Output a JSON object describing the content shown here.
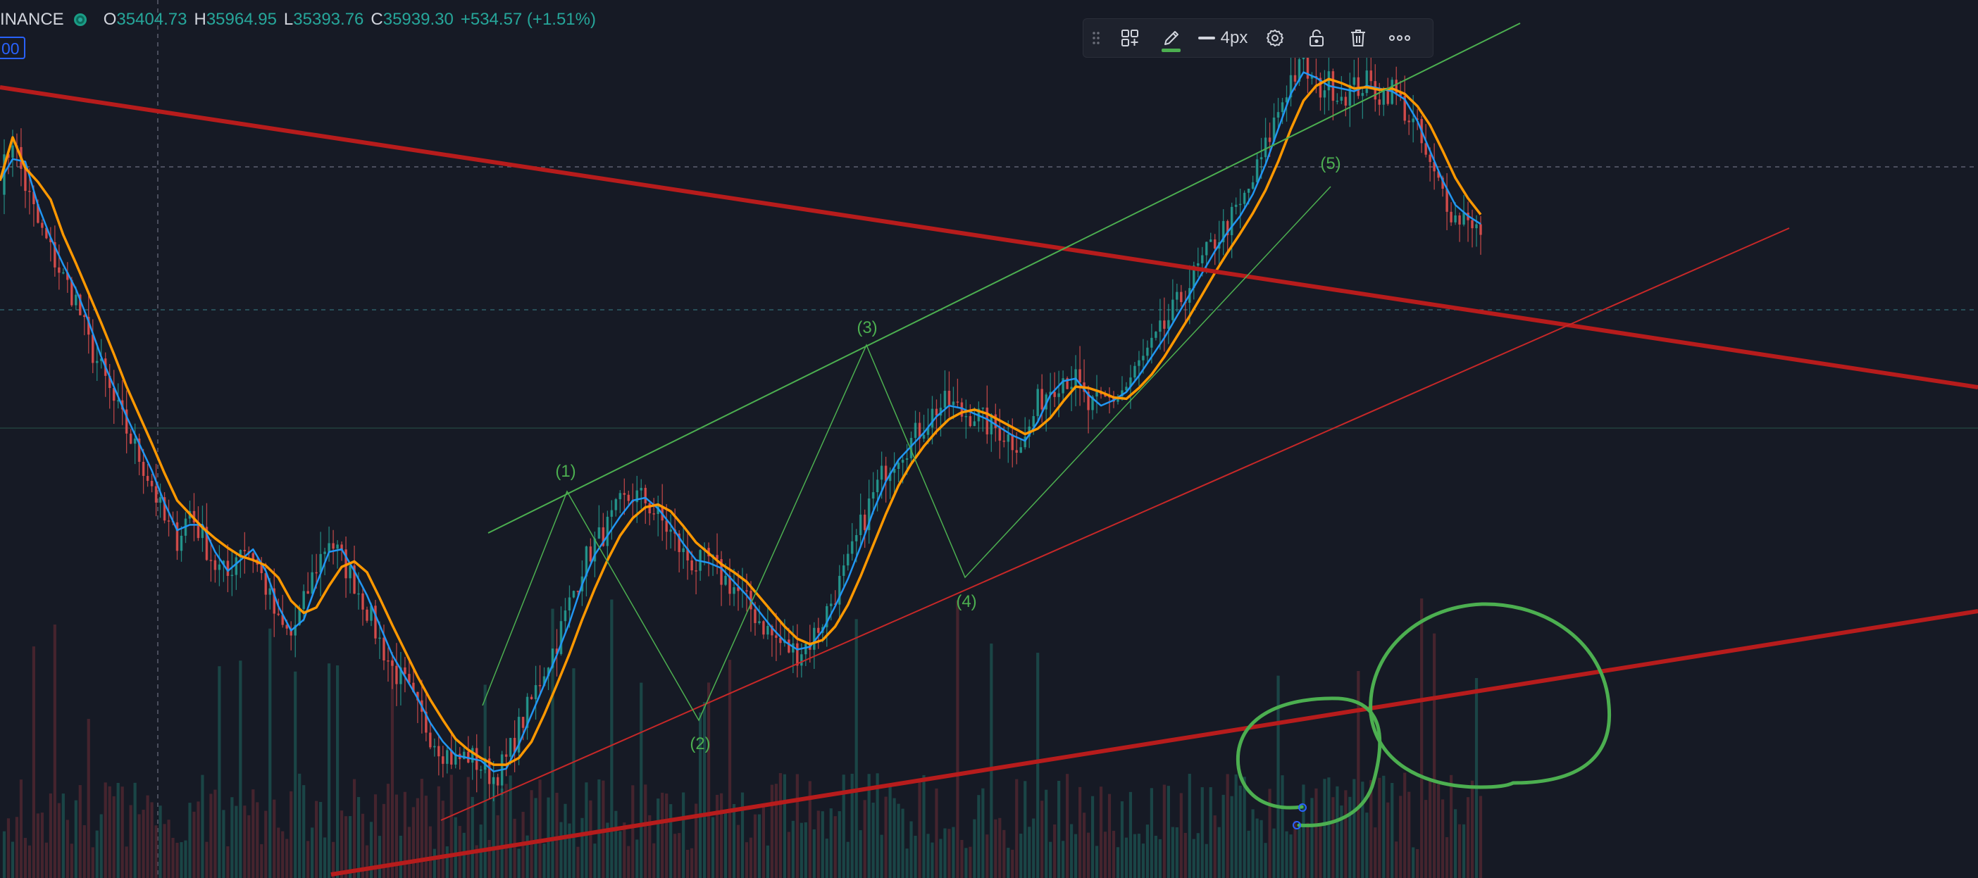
{
  "legend": {
    "symbol": "INANCE",
    "open_label": "O",
    "open": "35404.73",
    "high_label": "H",
    "high": "35964.95",
    "low_label": "L",
    "low": "35393.76",
    "close_label": "C",
    "close": "35939.30",
    "change": "+534.57 (+1.51%)"
  },
  "price_tag": "00",
  "toolbar": {
    "drag_icon": "drag-handle-icon",
    "templates_icon": "templates-icon",
    "color_icon": "pencil-icon",
    "color": "#4caf50",
    "stroke_width": "4px",
    "settings_icon": "gear-icon",
    "lock_icon": "unlock-icon",
    "delete_icon": "trash-icon",
    "more_icon": "more-icon"
  },
  "colors": {
    "background": "#161a25",
    "candle_up": "#26a69a",
    "candle_down": "#ef5350",
    "ma_fast": "#2196f3",
    "ma_slow": "#ff9800",
    "trendline": "#b71c1c",
    "drawing": "#4caf50"
  },
  "chart_data": {
    "type": "line",
    "title": "",
    "series": [
      {
        "values": [
          34200,
          34600,
          34150,
          33800,
          33550,
          33300,
          33100,
          32700,
          32450,
          32150,
          31900,
          31650,
          31400,
          31050,
          30900,
          31150,
          30900,
          30650,
          30550,
          30850,
          30750,
          30450,
          30100,
          30000,
          30300,
          30650,
          30900,
          30700,
          30500,
          30250,
          29950,
          29700,
          29550,
          29300,
          29100,
          28950,
          28850,
          28900,
          28800,
          28700,
          28850,
          29150,
          29400,
          29700,
          29950,
          30300,
          30650,
          30850,
          31000,
          31200,
          31300,
          31250,
          31100,
          30950,
          30750,
          30650,
          30700,
          30550,
          30450,
          30300,
          30150,
          30000,
          29900,
          29850,
          29950,
          30150,
          30400,
          30650,
          31000,
          31300,
          31550,
          31700,
          31800,
          31950,
          32100,
          32150,
          32050,
          32050,
          31950,
          31900,
          31800,
          31800,
          32150,
          32300,
          32400,
          32350,
          32100,
          32150,
          32200,
          32300,
          32500,
          32650,
          32850,
          33050,
          33250,
          33450,
          33650,
          33800,
          33950,
          34200,
          34500,
          34850,
          35150,
          35250,
          35050,
          35100,
          35000,
          35050,
          35100,
          35000,
          35050,
          34850,
          34650,
          34300,
          34100,
          33850,
          33900,
          33700
        ],
        "type": "price"
      }
    ],
    "waves": [
      {
        "label": "(1)",
        "value": 31250
      },
      {
        "label": "(2)",
        "value": 29550
      },
      {
        "label": "(3)",
        "value": 32700
      },
      {
        "label": "(4)",
        "value": 31350
      },
      {
        "label": "(5)",
        "value": 35400
      }
    ],
    "grid": true,
    "legend": "none"
  }
}
